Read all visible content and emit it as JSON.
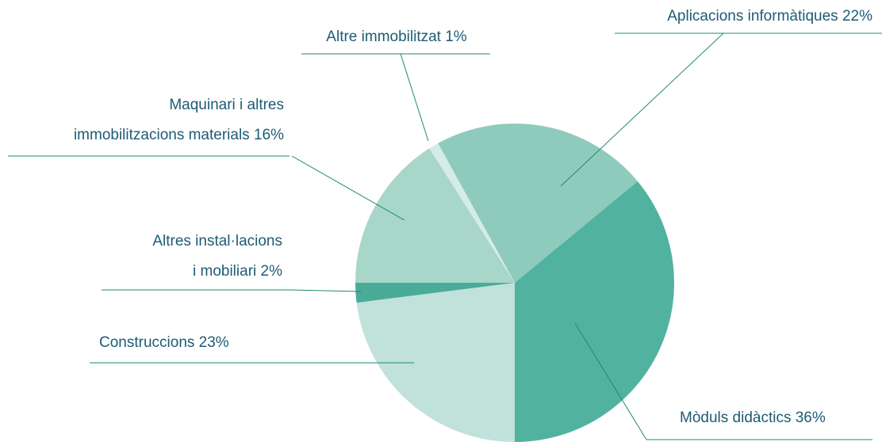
{
  "chart_data": {
    "type": "pie",
    "categories": [
      "Aplicacions informàtiques",
      "Mòduls didàctics",
      "Construccions",
      "Altres instal·lacions\ni mobiliari",
      "Maquinari i altres\nimmobilitzacions materials",
      "Altre immobilitzat"
    ],
    "values": [
      22,
      36,
      23,
      2,
      16,
      1
    ],
    "value_labels": [
      "22%",
      "36%",
      "23%",
      "2%",
      "16%",
      "1%"
    ],
    "colors": [
      "#8fcbbd",
      "#52b2a0",
      "#c0e2da",
      "#4aab98",
      "#a8d6c9",
      "#d5ece6"
    ]
  }
}
